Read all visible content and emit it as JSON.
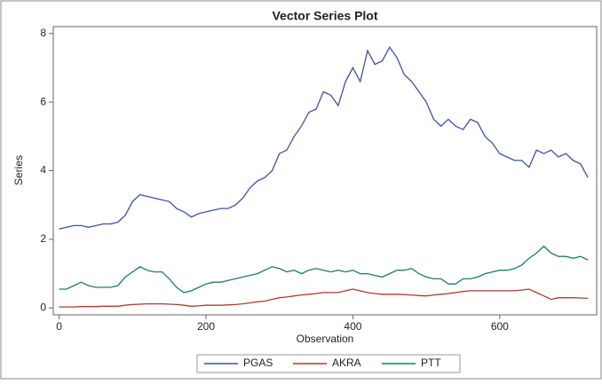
{
  "chart_data": {
    "type": "line",
    "title": "Vector Series Plot",
    "x_label": "Observation",
    "y_label": "Series",
    "x": [
      0,
      10,
      20,
      30,
      40,
      50,
      60,
      70,
      80,
      90,
      100,
      110,
      120,
      130,
      140,
      150,
      160,
      170,
      180,
      190,
      200,
      210,
      220,
      230,
      240,
      250,
      260,
      270,
      280,
      290,
      300,
      310,
      320,
      330,
      340,
      350,
      360,
      370,
      380,
      390,
      400,
      410,
      420,
      430,
      440,
      450,
      460,
      470,
      480,
      490,
      500,
      510,
      520,
      530,
      540,
      550,
      560,
      570,
      580,
      590,
      600,
      610,
      620,
      630,
      640,
      650,
      660,
      670,
      680,
      690,
      700,
      710,
      720
    ],
    "series": [
      {
        "name": "PGAS",
        "color": "#3f51a0",
        "values": [
          2.3,
          2.35,
          2.4,
          2.4,
          2.35,
          2.4,
          2.45,
          2.45,
          2.5,
          2.7,
          3.1,
          3.3,
          3.25,
          3.2,
          3.15,
          3.1,
          2.9,
          2.8,
          2.65,
          2.75,
          2.8,
          2.85,
          2.9,
          2.9,
          3.0,
          3.2,
          3.5,
          3.7,
          3.8,
          4.0,
          4.5,
          4.6,
          5.0,
          5.3,
          5.7,
          5.8,
          6.3,
          6.2,
          5.9,
          6.6,
          7.0,
          6.6,
          7.5,
          7.1,
          7.2,
          7.6,
          7.3,
          6.8,
          6.6,
          6.3,
          6.0,
          5.5,
          5.3,
          5.5,
          5.3,
          5.2,
          5.5,
          5.4,
          5.0,
          4.8,
          4.5,
          4.4,
          4.3,
          4.3,
          4.1,
          4.6,
          4.5,
          4.6,
          4.4,
          4.5,
          4.3,
          4.2,
          3.8
        ]
      },
      {
        "name": "AKRA",
        "color": "#b03a2e",
        "values": [
          0.03,
          0.03,
          0.03,
          0.04,
          0.04,
          0.04,
          0.05,
          0.05,
          0.05,
          0.08,
          0.1,
          0.11,
          0.12,
          0.12,
          0.12,
          0.11,
          0.1,
          0.08,
          0.05,
          0.06,
          0.08,
          0.08,
          0.08,
          0.09,
          0.1,
          0.12,
          0.15,
          0.18,
          0.2,
          0.25,
          0.3,
          0.32,
          0.35,
          0.38,
          0.4,
          0.42,
          0.45,
          0.45,
          0.45,
          0.5,
          0.55,
          0.5,
          0.45,
          0.42,
          0.4,
          0.4,
          0.4,
          0.39,
          0.38,
          0.36,
          0.35,
          0.38,
          0.4,
          0.42,
          0.45,
          0.48,
          0.5,
          0.5,
          0.5,
          0.5,
          0.5,
          0.5,
          0.5,
          0.52,
          0.55,
          0.45,
          0.35,
          0.25,
          0.3,
          0.3,
          0.3,
          0.29,
          0.28
        ]
      },
      {
        "name": "PTT",
        "color": "#1b7a72",
        "values": [
          0.55,
          0.55,
          0.65,
          0.75,
          0.65,
          0.6,
          0.6,
          0.6,
          0.65,
          0.9,
          1.05,
          1.2,
          1.1,
          1.05,
          1.05,
          0.85,
          0.6,
          0.45,
          0.5,
          0.6,
          0.7,
          0.75,
          0.75,
          0.8,
          0.85,
          0.9,
          0.95,
          1.0,
          1.1,
          1.2,
          1.15,
          1.05,
          1.1,
          1.0,
          1.1,
          1.15,
          1.1,
          1.05,
          1.1,
          1.05,
          1.1,
          1.0,
          1.0,
          0.95,
          0.9,
          1.0,
          1.1,
          1.1,
          1.15,
          1.0,
          0.9,
          0.85,
          0.85,
          0.7,
          0.7,
          0.85,
          0.85,
          0.9,
          1.0,
          1.05,
          1.1,
          1.1,
          1.15,
          1.25,
          1.45,
          1.6,
          1.8,
          1.6,
          1.5,
          1.5,
          1.45,
          1.5,
          1.4
        ]
      }
    ],
    "xlim": [
      -8,
      732
    ],
    "xticks": [
      0,
      200,
      400,
      600
    ],
    "ylim": [
      -0.2,
      8.2
    ],
    "yticks": [
      0,
      2,
      4,
      6,
      8
    ]
  }
}
